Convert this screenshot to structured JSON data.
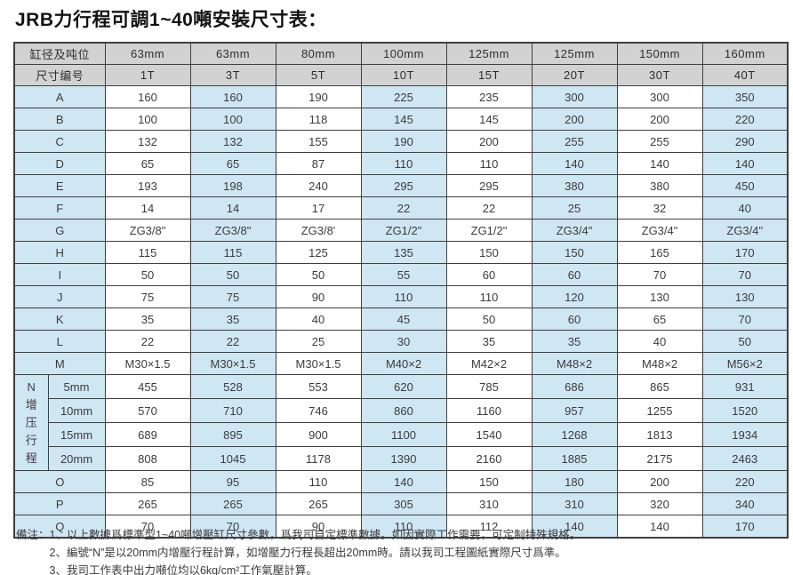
{
  "title": "JRB力行程可調1~40噸安裝尺寸表：",
  "table": {
    "header_rows": [
      {
        "label": "缸径及吨位",
        "cells": [
          "63mm",
          "63mm",
          "80mm",
          "100mm",
          "125mm",
          "125mm",
          "150mm",
          "160mm"
        ]
      },
      {
        "label": "尺寸编号",
        "cells": [
          "1T",
          "3T",
          "5T",
          "10T",
          "15T",
          "20T",
          "30T",
          "40T"
        ]
      }
    ],
    "rows_a_m": [
      {
        "label": "A",
        "cells": [
          "160",
          "160",
          "190",
          "225",
          "235",
          "300",
          "300",
          "350"
        ]
      },
      {
        "label": "B",
        "cells": [
          "100",
          "100",
          "118",
          "145",
          "145",
          "200",
          "200",
          "220"
        ]
      },
      {
        "label": "C",
        "cells": [
          "132",
          "132",
          "155",
          "190",
          "200",
          "255",
          "255",
          "290"
        ]
      },
      {
        "label": "D",
        "cells": [
          "65",
          "65",
          "87",
          "110",
          "110",
          "140",
          "140",
          "140"
        ]
      },
      {
        "label": "E",
        "cells": [
          "193",
          "198",
          "240",
          "295",
          "295",
          "380",
          "380",
          "450"
        ]
      },
      {
        "label": "F",
        "cells": [
          "14",
          "14",
          "17",
          "22",
          "22",
          "25",
          "32",
          "40"
        ]
      },
      {
        "label": "G",
        "cells": [
          "ZG3/8\"",
          "ZG3/8\"",
          "ZG3/8'",
          "ZG1/2\"",
          "ZG1/2\"",
          "ZG3/4\"",
          "ZG3/4\"",
          "ZG3/4\""
        ]
      },
      {
        "label": "H",
        "cells": [
          "115",
          "115",
          "125",
          "135",
          "150",
          "150",
          "165",
          "170"
        ]
      },
      {
        "label": "I",
        "cells": [
          "50",
          "50",
          "50",
          "55",
          "60",
          "60",
          "70",
          "70"
        ]
      },
      {
        "label": "J",
        "cells": [
          "75",
          "75",
          "90",
          "110",
          "110",
          "120",
          "130",
          "130"
        ]
      },
      {
        "label": "K",
        "cells": [
          "35",
          "35",
          "40",
          "45",
          "50",
          "60",
          "65",
          "70"
        ]
      },
      {
        "label": "L",
        "cells": [
          "22",
          "22",
          "25",
          "30",
          "35",
          "35",
          "40",
          "50"
        ]
      },
      {
        "label": "M",
        "cells": [
          "M30×1.5",
          "M30×1.5",
          "M30×1.5",
          "M40×2",
          "M42×2",
          "M48×2",
          "M48×2",
          "M56×2"
        ]
      }
    ],
    "n_block": {
      "group_label": "N增压行程",
      "sub_rows": [
        {
          "label": "5mm",
          "cells": [
            "455",
            "528",
            "553",
            "620",
            "785",
            "686",
            "865",
            "931"
          ]
        },
        {
          "label": "10mm",
          "cells": [
            "570",
            "710",
            "746",
            "860",
            "1160",
            "957",
            "1255",
            "1520"
          ]
        },
        {
          "label": "15mm",
          "cells": [
            "689",
            "895",
            "900",
            "1100",
            "1540",
            "1268",
            "1813",
            "1934"
          ]
        },
        {
          "label": "20mm",
          "cells": [
            "808",
            "1045",
            "1178",
            "1390",
            "2160",
            "1885",
            "2175",
            "2463"
          ]
        }
      ]
    },
    "rows_o_q": [
      {
        "label": "O",
        "cells": [
          "85",
          "95",
          "110",
          "140",
          "150",
          "180",
          "200",
          "220"
        ]
      },
      {
        "label": "P",
        "cells": [
          "265",
          "265",
          "265",
          "305",
          "310",
          "310",
          "320",
          "340"
        ]
      },
      {
        "label": "Q",
        "cells": [
          "70",
          "70",
          "90",
          "110",
          "112",
          "140",
          "140",
          "170"
        ]
      }
    ]
  },
  "notes": {
    "prefix": "備注：",
    "items": [
      "1、以上數據爲標準型1~40噸增壓缸尺寸參數，爲我司自定標準數據。如因實際工作需要，可定制特殊規格。",
      "2、編號“N”是以20mm内增壓行程計算，如增壓力行程長超出20mm時。請以我司工程圖紙實際尺寸爲準。",
      "3、我司工作表中出力噸位均以6kg/cm²工作氣壓計算。"
    ]
  },
  "colors": {
    "header_bg": "#d2d2d2",
    "stripe_blue": "#cfe6f3",
    "cell_white": "#ffffff",
    "border": "#3f3f3f"
  }
}
